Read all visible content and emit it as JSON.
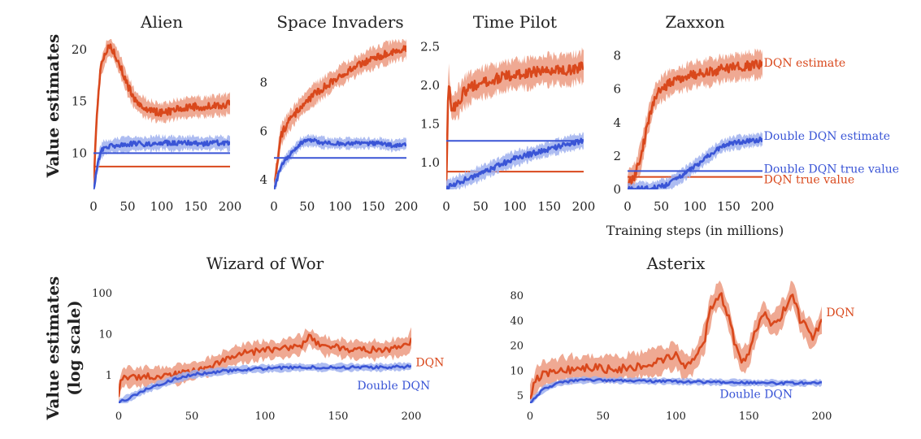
{
  "colors": {
    "dqn": "#d9481c",
    "dqn_band": "#ec9a80",
    "double": "#3a55d6",
    "double_band": "#9fb0ef"
  },
  "labels": {
    "ylabel_top": "Value estimates",
    "ylabel_bottom_1": "Value estimates",
    "ylabel_bottom_2": "(log scale)",
    "xlabel": "Training steps (in millions)"
  },
  "chart_data": [
    {
      "type": "line",
      "title": "Alien",
      "xlim": [
        0,
        200
      ],
      "ylim": [
        6.5,
        21
      ],
      "xticks": [
        0,
        50,
        100,
        150,
        200
      ],
      "yticks": [
        10,
        15,
        20
      ],
      "series": [
        {
          "key": "dqn_est",
          "x": [
            0,
            5,
            10,
            20,
            25,
            30,
            40,
            50,
            60,
            70,
            80,
            90,
            100,
            110,
            120,
            130,
            140,
            150,
            160,
            170,
            180,
            190,
            200
          ],
          "values": [
            6.5,
            14,
            18,
            20,
            20.2,
            19.8,
            18.3,
            16.5,
            15.2,
            14.6,
            14.2,
            14.0,
            13.9,
            14.0,
            14.2,
            14.3,
            14.4,
            14.5,
            14.4,
            14.5,
            14.6,
            14.6,
            14.8
          ],
          "noise": 0.5
        },
        {
          "key": "dqn_true",
          "x": [
            0,
            200
          ],
          "values": [
            8.7,
            8.7
          ]
        },
        {
          "key": "double_est",
          "x": [
            0,
            5,
            10,
            15,
            20,
            30,
            40,
            60,
            80,
            100,
            120,
            140,
            160,
            180,
            200
          ],
          "values": [
            6.5,
            8.5,
            10.0,
            10.5,
            10.6,
            10.7,
            10.8,
            10.9,
            10.9,
            11.0,
            10.9,
            11.0,
            10.9,
            11.0,
            10.9
          ],
          "noise": 0.35
        },
        {
          "key": "double_true",
          "x": [
            0,
            200
          ],
          "values": [
            10.0,
            10.0
          ]
        }
      ],
      "annotations": []
    },
    {
      "type": "line",
      "title": "Space Invaders",
      "xlim": [
        0,
        200
      ],
      "ylim": [
        3.6,
        9.8
      ],
      "xticks": [
        0,
        50,
        100,
        150,
        200
      ],
      "yticks": [
        4,
        6,
        8
      ],
      "series": [
        {
          "key": "dqn_est",
          "x": [
            0,
            10,
            20,
            40,
            60,
            80,
            100,
            120,
            140,
            160,
            180,
            200
          ],
          "values": [
            3.6,
            5.8,
            6.3,
            7.0,
            7.5,
            7.9,
            8.3,
            8.6,
            8.9,
            9.1,
            9.3,
            9.4
          ],
          "noise": 0.22
        },
        {
          "key": "double_est",
          "x": [
            0,
            10,
            20,
            30,
            40,
            50,
            60,
            80,
            100,
            120,
            140,
            160,
            180,
            200
          ],
          "values": [
            3.6,
            4.5,
            4.9,
            5.2,
            5.5,
            5.6,
            5.6,
            5.5,
            5.5,
            5.5,
            5.5,
            5.5,
            5.4,
            5.5
          ],
          "noise": 0.12
        },
        {
          "key": "double_true",
          "x": [
            0,
            200
          ],
          "values": [
            4.9,
            4.9
          ]
        }
      ],
      "annotations": []
    },
    {
      "type": "line",
      "title": "Time Pilot",
      "xlim": [
        0,
        200
      ],
      "ylim": [
        0.65,
        2.6
      ],
      "xticks": [
        0,
        50,
        100,
        150,
        200
      ],
      "yticks": [
        1.0,
        1.5,
        2.0,
        2.5
      ],
      "yticklabels": [
        "1.0",
        "1.5",
        "2.0",
        "2.5"
      ],
      "series": [
        {
          "key": "dqn_est",
          "x": [
            0,
            3,
            8,
            15,
            25,
            40,
            60,
            80,
            100,
            120,
            140,
            160,
            180,
            200
          ],
          "values": [
            0.7,
            2.1,
            1.7,
            1.75,
            1.9,
            2.0,
            2.05,
            2.1,
            2.15,
            2.15,
            2.2,
            2.2,
            2.2,
            2.25
          ],
          "noise": 0.1
        },
        {
          "key": "dqn_true",
          "x": [
            0,
            200
          ],
          "values": [
            0.88,
            0.88
          ]
        },
        {
          "key": "double_est",
          "x": [
            0,
            10,
            20,
            40,
            60,
            80,
            100,
            120,
            140,
            160,
            180,
            200
          ],
          "values": [
            0.65,
            0.72,
            0.75,
            0.82,
            0.9,
            0.98,
            1.05,
            1.1,
            1.15,
            1.2,
            1.25,
            1.28
          ],
          "noise": 0.05
        },
        {
          "key": "double_true",
          "x": [
            0,
            200
          ],
          "values": [
            1.28,
            1.28
          ]
        }
      ],
      "annotations": []
    },
    {
      "type": "line",
      "title": "Zaxxon",
      "xlim": [
        0,
        200
      ],
      "ylim": [
        0,
        9
      ],
      "xticks": [
        0,
        50,
        100,
        150,
        200
      ],
      "yticks": [
        0,
        2,
        4,
        6,
        8
      ],
      "xlabel": "Training steps (in millions)",
      "series": [
        {
          "key": "dqn_est",
          "x": [
            0,
            10,
            20,
            30,
            40,
            50,
            60,
            70,
            80,
            100,
            120,
            140,
            160,
            180,
            200
          ],
          "values": [
            0.2,
            0.8,
            2.0,
            4.0,
            5.5,
            6.0,
            6.3,
            6.5,
            6.6,
            6.9,
            7.0,
            7.2,
            7.3,
            7.4,
            7.5
          ],
          "noise": 0.4
        },
        {
          "key": "dqn_true",
          "x": [
            0,
            200
          ],
          "values": [
            0.75,
            0.75
          ]
        },
        {
          "key": "double_est",
          "x": [
            0,
            20,
            40,
            60,
            80,
            100,
            120,
            140,
            160,
            180,
            200
          ],
          "values": [
            0.0,
            0.05,
            0.1,
            0.3,
            0.8,
            1.4,
            2.0,
            2.6,
            2.8,
            2.9,
            3.0
          ],
          "noise": 0.2
        },
        {
          "key": "double_true",
          "x": [
            0,
            200
          ],
          "values": [
            1.1,
            1.1
          ]
        }
      ],
      "annotations": [
        {
          "text": "DQN estimate",
          "x": 202,
          "y": 7.6,
          "color": "dqn"
        },
        {
          "text": "Double DQN estimate",
          "x": 202,
          "y": 3.2,
          "color": "double"
        },
        {
          "text": "Double DQN true value",
          "x": 202,
          "y": 1.25,
          "color": "double"
        },
        {
          "text": "DQN true value",
          "x": 202,
          "y": 0.6,
          "color": "dqn"
        }
      ]
    },
    {
      "type": "line",
      "title": "Wizard of Wor",
      "scale": "log",
      "xlim": [
        0,
        200
      ],
      "ylim": [
        0.2,
        200
      ],
      "xticks": [
        0,
        50,
        100,
        150,
        200
      ],
      "yticks": [
        1,
        10,
        100
      ],
      "series": [
        {
          "key": "dqn_est",
          "x": [
            0,
            2,
            5,
            10,
            20,
            30,
            40,
            50,
            60,
            70,
            80,
            90,
            100,
            110,
            120,
            125,
            130,
            140,
            150,
            160,
            170,
            180,
            190,
            198,
            200
          ],
          "values": [
            0.3,
            0.8,
            0.9,
            0.85,
            0.9,
            0.95,
            1.0,
            1.2,
            1.5,
            2.0,
            3.0,
            3.5,
            4.0,
            4.0,
            5.0,
            5.5,
            8.0,
            5.0,
            4.5,
            4.0,
            4.0,
            4.0,
            4.5,
            5.0,
            8.0
          ],
          "noise": 0.12
        },
        {
          "key": "double_est",
          "x": [
            0,
            5,
            10,
            20,
            30,
            40,
            50,
            60,
            70,
            80,
            100,
            120,
            140,
            160,
            180,
            200
          ],
          "values": [
            0.2,
            0.25,
            0.3,
            0.45,
            0.6,
            0.8,
            1.0,
            1.1,
            1.2,
            1.3,
            1.4,
            1.5,
            1.5,
            1.5,
            1.5,
            1.6
          ],
          "noise": 0.05
        }
      ],
      "annotations": [
        {
          "text": "DQN",
          "x": 203,
          "y": 2.0,
          "color": "dqn"
        },
        {
          "text": "Double DQN",
          "x": 163,
          "y": 0.55,
          "color": "double"
        }
      ]
    },
    {
      "type": "line",
      "title": "Asterix",
      "scale": "log",
      "xlim": [
        0,
        200
      ],
      "ylim": [
        4.0,
        120
      ],
      "xticks": [
        0,
        50,
        100,
        150,
        200
      ],
      "yticks": [
        5,
        10,
        20,
        40,
        80
      ],
      "series": [
        {
          "key": "dqn_est",
          "x": [
            0,
            5,
            10,
            20,
            30,
            40,
            50,
            60,
            70,
            80,
            90,
            100,
            105,
            110,
            115,
            120,
            125,
            130,
            135,
            140,
            145,
            150,
            155,
            160,
            165,
            170,
            175,
            180,
            185,
            190,
            195,
            200
          ],
          "values": [
            4.5,
            8.0,
            9.0,
            10.0,
            10.5,
            10.5,
            10.5,
            10.5,
            11.0,
            12.0,
            13.0,
            15.0,
            11.0,
            11.5,
            15.0,
            25.0,
            60.0,
            85.0,
            50.0,
            20.0,
            13.0,
            15.0,
            30.0,
            50.0,
            35.0,
            40.0,
            55.0,
            85.0,
            40.0,
            30.0,
            25.0,
            40.0
          ],
          "noise": 0.08
        },
        {
          "key": "double_est",
          "x": [
            0,
            5,
            10,
            20,
            30,
            40,
            60,
            80,
            100,
            120,
            140,
            160,
            180,
            200
          ],
          "values": [
            4.0,
            5.0,
            6.0,
            7.0,
            7.5,
            7.6,
            7.5,
            7.4,
            7.3,
            7.2,
            7.1,
            7.0,
            7.0,
            7.0
          ],
          "noise": 0.02
        }
      ],
      "annotations": [
        {
          "text": "DQN",
          "x": 203,
          "y": 50,
          "color": "dqn"
        },
        {
          "text": "Double DQN",
          "x": 130,
          "y": 5.2,
          "color": "double"
        }
      ]
    }
  ]
}
